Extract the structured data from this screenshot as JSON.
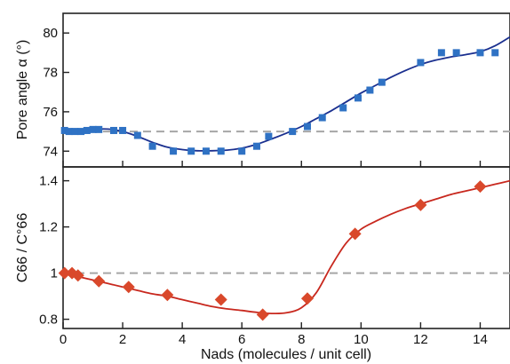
{
  "chart_data": [
    {
      "type": "scatter",
      "ylabel": "Pore angle α (°)",
      "xlim": [
        0,
        15
      ],
      "ylim": [
        73.2,
        81
      ],
      "yticks": [
        "74",
        "76",
        "78",
        "80"
      ],
      "reference_line": {
        "y": 75,
        "style": "dashed",
        "color": "#a6a6a6"
      },
      "series": [
        {
          "marker": "square",
          "color": "#2f72c4",
          "x": [
            0.05,
            0.2,
            0.4,
            0.6,
            0.8,
            1.0,
            1.2,
            1.7,
            2.0,
            2.5,
            3.0,
            3.7,
            4.3,
            4.8,
            5.3,
            6.0,
            6.5,
            6.9,
            7.7,
            8.2,
            8.7,
            9.4,
            9.9,
            10.3,
            10.7,
            12.0,
            12.7,
            13.2,
            14.0,
            14.5
          ],
          "y": [
            75.05,
            75.0,
            75.0,
            75.0,
            75.05,
            75.1,
            75.1,
            75.05,
            75.05,
            74.8,
            74.25,
            74.0,
            74.0,
            74.0,
            74.0,
            74.0,
            74.25,
            74.75,
            75.0,
            75.25,
            75.7,
            76.2,
            76.7,
            77.1,
            77.5,
            78.5,
            79.0,
            79.0,
            79.0,
            79.0
          ]
        }
      ],
      "fit_curve": {
        "color": "#1a2f8f",
        "x": [
          0,
          0.5,
          1.0,
          1.5,
          2.0,
          2.5,
          3.0,
          3.5,
          4.0,
          4.5,
          5.0,
          5.5,
          6.0,
          6.5,
          7.0,
          7.5,
          8.0,
          8.5,
          9.0,
          9.5,
          10.0,
          10.5,
          11.0,
          11.5,
          12.0,
          12.5,
          13.0,
          13.5,
          14.0,
          14.5,
          15.0
        ],
        "y": [
          75.0,
          75.0,
          75.1,
          75.12,
          75.0,
          74.75,
          74.45,
          74.2,
          74.08,
          74.02,
          74.02,
          74.05,
          74.15,
          74.35,
          74.62,
          74.92,
          75.25,
          75.65,
          76.05,
          76.5,
          76.95,
          77.35,
          77.75,
          78.1,
          78.4,
          78.62,
          78.78,
          78.9,
          79.05,
          79.35,
          79.8
        ]
      }
    },
    {
      "type": "scatter",
      "ylabel": "C66 / C°66",
      "xlabel": "Nads (molecules / unit cell)",
      "xlim": [
        0,
        15
      ],
      "ylim": [
        0.76,
        1.46
      ],
      "xticks": [
        "0",
        "2",
        "4",
        "6",
        "8",
        "10",
        "12",
        "14"
      ],
      "yticks": [
        "0.8",
        "1",
        "1.2",
        "1.4"
      ],
      "reference_line": {
        "y": 1.0,
        "style": "dashed",
        "color": "#a6a6a6"
      },
      "series": [
        {
          "marker": "diamond",
          "color": "#d9482b",
          "x": [
            0.05,
            0.3,
            0.5,
            1.2,
            2.2,
            3.5,
            5.3,
            6.7,
            8.2,
            9.8,
            12.0,
            14.0
          ],
          "y": [
            1.0,
            1.0,
            0.99,
            0.965,
            0.94,
            0.905,
            0.885,
            0.82,
            0.89,
            1.17,
            1.295,
            1.375
          ]
        }
      ],
      "fit_curve": {
        "color": "#c8281e",
        "x": [
          0,
          0.5,
          1.0,
          1.5,
          2.0,
          2.5,
          3.0,
          3.5,
          4.0,
          4.5,
          5.0,
          5.5,
          6.0,
          6.5,
          7.0,
          7.5,
          8.0,
          8.5,
          9.0,
          9.5,
          10.0,
          10.5,
          11.0,
          11.5,
          12.0,
          12.5,
          13.0,
          13.5,
          14.0,
          14.5,
          15.0
        ],
        "y": [
          1.0,
          0.985,
          0.97,
          0.955,
          0.94,
          0.925,
          0.91,
          0.9,
          0.885,
          0.87,
          0.855,
          0.845,
          0.838,
          0.83,
          0.825,
          0.828,
          0.85,
          0.915,
          1.03,
          1.13,
          1.19,
          1.225,
          1.255,
          1.28,
          1.3,
          1.32,
          1.34,
          1.355,
          1.37,
          1.385,
          1.4
        ]
      }
    }
  ]
}
